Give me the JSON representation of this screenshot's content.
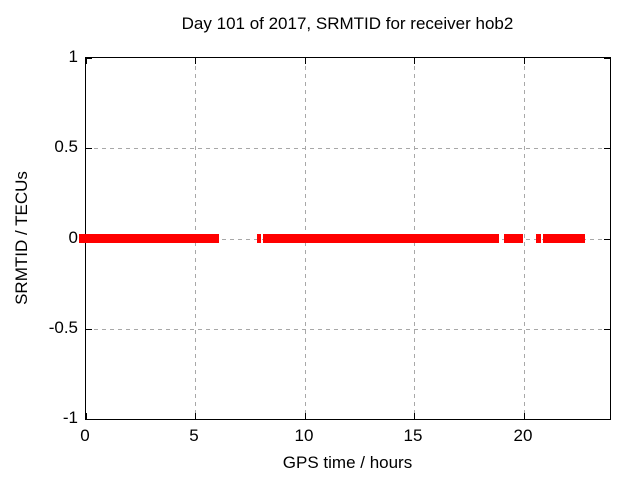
{
  "colors": {
    "series": "#ff0000",
    "grid": "#a8a8a8",
    "axis": "#000000",
    "background": "#ffffff",
    "text": "#000000"
  },
  "chart_data": {
    "type": "scatter",
    "title": "Day 101 of 2017, SRMTID for receiver hob2",
    "xlabel": "GPS time / hours",
    "ylabel": "SRMTID / TECUs",
    "xlim": [
      0,
      24
    ],
    "ylim": [
      -1,
      1
    ],
    "xticks": [
      0,
      5,
      10,
      15,
      20
    ],
    "yticks": [
      1,
      0.5,
      0,
      -0.5,
      -1
    ],
    "grid": true,
    "grid_style": "dashed",
    "legend": "none",
    "tick_mirror": true,
    "series": [
      {
        "name": "SRMTID",
        "color": "#ff0000",
        "marker": "filled-square",
        "y_value": 0,
        "segments_hours": [
          {
            "start": -0.3,
            "end": 6.1
          },
          {
            "start": 7.8,
            "end": 8.0
          },
          {
            "start": 8.1,
            "end": 18.9
          },
          {
            "start": 19.1,
            "end": 20.0
          },
          {
            "start": 20.55,
            "end": 20.8
          },
          {
            "start": 20.9,
            "end": 22.8
          }
        ]
      }
    ]
  }
}
